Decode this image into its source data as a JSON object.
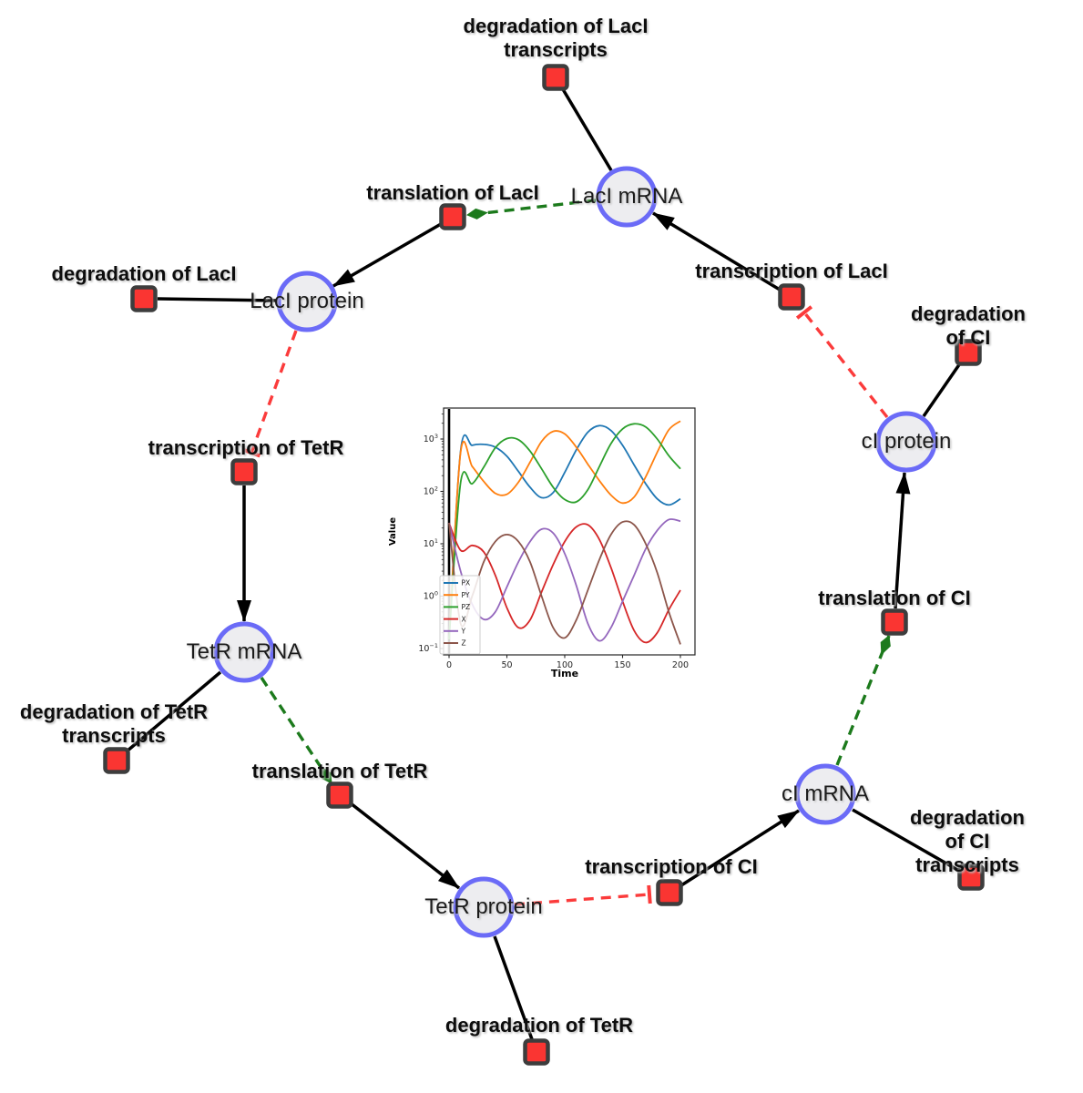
{
  "diagram": {
    "species": [
      {
        "id": "laci-mrna",
        "label": "LacI mRNA"
      },
      {
        "id": "laci-protein",
        "label": "LacI protein"
      },
      {
        "id": "tetr-mrna",
        "label": "TetR mRNA"
      },
      {
        "id": "tetr-protein",
        "label": "TetR protein"
      },
      {
        "id": "ci-mrna",
        "label": "cI mRNA"
      },
      {
        "id": "ci-protein",
        "label": "cI protein"
      }
    ],
    "reactions": [
      {
        "id": "degradation-laci-transcripts",
        "label": "degradation of LacI\ntranscripts"
      },
      {
        "id": "translation-laci",
        "label": "translation of LacI"
      },
      {
        "id": "transcription-laci",
        "label": "transcription of LacI"
      },
      {
        "id": "degradation-laci",
        "label": "degradation of LacI"
      },
      {
        "id": "degradation-ci",
        "label": "degradation of CI"
      },
      {
        "id": "transcription-tetr",
        "label": "transcription of TetR"
      },
      {
        "id": "translation-ci",
        "label": "translation of CI"
      },
      {
        "id": "degradation-tetr-transcripts",
        "label": "degradation of TetR\ntranscripts"
      },
      {
        "id": "translation-tetr",
        "label": "translation of TetR"
      },
      {
        "id": "degradation-ci-transcripts",
        "label": "degradation of CI\ntranscripts"
      },
      {
        "id": "transcription-ci",
        "label": "transcription of CI"
      },
      {
        "id": "degradation-tetr",
        "label": "degradation of TetR"
      }
    ],
    "edges": [
      {
        "source": "LacI mRNA",
        "target": "degradation of LacI transcripts",
        "type": "consumption"
      },
      {
        "source": "LacI protein",
        "target": "degradation of LacI",
        "type": "consumption"
      },
      {
        "source": "TetR mRNA",
        "target": "degradation of TetR transcripts",
        "type": "consumption"
      },
      {
        "source": "TetR protein",
        "target": "degradation of TetR",
        "type": "consumption"
      },
      {
        "source": "cI mRNA",
        "target": "degradation of CI transcripts",
        "type": "consumption"
      },
      {
        "source": "cI protein",
        "target": "degradation of CI",
        "type": "consumption"
      },
      {
        "source": "translation of LacI",
        "target": "LacI protein",
        "type": "production"
      },
      {
        "source": "transcription of TetR",
        "target": "TetR mRNA",
        "type": "production"
      },
      {
        "source": "translation of TetR",
        "target": "TetR protein",
        "type": "production"
      },
      {
        "source": "transcription of CI",
        "target": "cI mRNA",
        "type": "production"
      },
      {
        "source": "translation of CI",
        "target": "cI protein",
        "type": "production"
      },
      {
        "source": "transcription of LacI",
        "target": "LacI mRNA",
        "type": "production"
      },
      {
        "source": "LacI mRNA",
        "target": "translation of LacI",
        "type": "catalysis"
      },
      {
        "source": "TetR mRNA",
        "target": "translation of TetR",
        "type": "catalysis"
      },
      {
        "source": "cI mRNA",
        "target": "translation of CI",
        "type": "catalysis"
      },
      {
        "source": "LacI protein",
        "target": "transcription of TetR",
        "type": "inhibition"
      },
      {
        "source": "TetR protein",
        "target": "transcription of CI",
        "type": "inhibition"
      },
      {
        "source": "cI protein",
        "target": "transcription of LacI",
        "type": "inhibition"
      }
    ],
    "colors": {
      "species_fill": "#ededf0",
      "species_border": "#6b6bf7",
      "reaction_fill": "#fa3532",
      "reaction_border": "#3d3d3d",
      "consumption_production": "#000000",
      "catalysis": "#1c7a1c",
      "inhibition": "#fb3b3b"
    }
  },
  "chart_data": {
    "type": "line",
    "title": "",
    "xlabel": "Time",
    "ylabel": "Value",
    "y_scale": "log",
    "xlim": [
      -5,
      213
    ],
    "x_ticks": [
      0,
      50,
      100,
      150,
      200
    ],
    "y_tick_exponents": [
      3,
      2,
      1,
      0,
      -1
    ],
    "grid": false,
    "legend_position": "lower left",
    "x": [
      0,
      10,
      20,
      30,
      40,
      50,
      60,
      70,
      80,
      90,
      100,
      110,
      120,
      130,
      140,
      150,
      160,
      170,
      180,
      190,
      200
    ],
    "series": [
      {
        "name": "PX",
        "color": "#1f77b4",
        "values": [
          0.15,
          600,
          760,
          790,
          700,
          470,
          240,
          120,
          76,
          95,
          230,
          620,
          1350,
          1800,
          1450,
          760,
          320,
          140,
          72,
          55,
          72
        ]
      },
      {
        "name": "PY",
        "color": "#ff7f0e",
        "values": [
          0.15,
          560,
          300,
          155,
          92,
          88,
          150,
          360,
          900,
          1400,
          1250,
          700,
          330,
          160,
          85,
          60,
          78,
          190,
          560,
          1500,
          2200
        ]
      },
      {
        "name": "PZ",
        "color": "#2ca02c",
        "values": [
          0.15,
          148,
          140,
          290,
          680,
          1020,
          970,
          590,
          270,
          120,
          70,
          63,
          108,
          300,
          820,
          1560,
          1950,
          1700,
          1000,
          480,
          270
        ]
      },
      {
        "name": "X",
        "color": "#d62728",
        "values": [
          25,
          7.5,
          9.3,
          7.0,
          2.5,
          0.6,
          0.25,
          0.35,
          1.2,
          4.0,
          11,
          21,
          23,
          12,
          3.5,
          0.8,
          0.22,
          0.13,
          0.2,
          0.55,
          1.3
        ]
      },
      {
        "name": "Y",
        "color": "#9467bd",
        "values": [
          25,
          3.0,
          0.7,
          0.36,
          0.5,
          1.5,
          4.5,
          11,
          19,
          16,
          6.5,
          1.6,
          0.3,
          0.14,
          0.25,
          0.8,
          2.5,
          8.0,
          18,
          29,
          27
        ]
      },
      {
        "name": "Z",
        "color": "#8c564b",
        "values": [
          25,
          0.3,
          1.0,
          4.5,
          11,
          15,
          11,
          4.5,
          1.0,
          0.25,
          0.16,
          0.35,
          1.3,
          5.0,
          15,
          26,
          23,
          10,
          2.8,
          0.5,
          0.12
        ]
      }
    ],
    "annotations": [
      {
        "type": "vline",
        "x": 0,
        "color": "#000000"
      }
    ]
  }
}
